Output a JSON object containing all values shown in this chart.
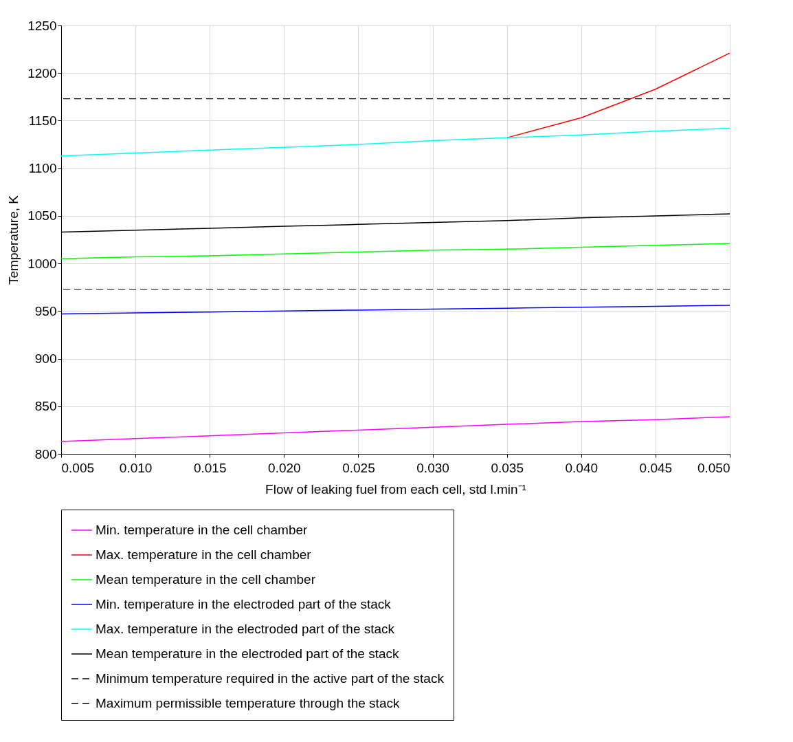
{
  "chart_data": {
    "type": "line",
    "xlabel": "Flow of leaking fuel from each cell, std l.min⁻¹",
    "ylabel": "Temperature, K",
    "x": [
      0.005,
      0.01,
      0.015,
      0.02,
      0.025,
      0.03,
      0.035,
      0.04,
      0.045,
      0.05
    ],
    "series": [
      {
        "name": "Min. temperature in the cell chamber",
        "color": "#ff00ff",
        "values": [
          813,
          816,
          819,
          822,
          825,
          828,
          831,
          834,
          836,
          839
        ]
      },
      {
        "name": "Max. temperature in the cell chamber",
        "color": "#ff0000",
        "values": [
          null,
          null,
          null,
          null,
          null,
          null,
          1132,
          1153,
          1183,
          1221
        ]
      },
      {
        "name": "Mean temperature in the cell chamber",
        "color": "#00ff00",
        "values": [
          1005,
          1007,
          1008,
          1010,
          1012,
          1014,
          1015,
          1017,
          1019,
          1021
        ]
      },
      {
        "name": "Min. temperature in the electroded part of the stack",
        "color": "#0000ff",
        "values": [
          947,
          948,
          949,
          950,
          951,
          952,
          953,
          954,
          955,
          956
        ]
      },
      {
        "name": "Max. temperature in the electroded part of the stack",
        "color": "#00ffff",
        "values": [
          1113,
          1116,
          1119,
          1122,
          1125,
          1129,
          1132,
          1135,
          1139,
          1142
        ]
      },
      {
        "name": "Mean temperature in the electroded part of the stack",
        "color": "#000000",
        "values": [
          1033,
          1035,
          1037,
          1039,
          1041,
          1043,
          1045,
          1048,
          1050,
          1052
        ]
      }
    ],
    "ref_lines": [
      {
        "axis": "y",
        "value": 973,
        "label": "Minimum temperature required in the active part of the stack",
        "color": "#000000",
        "line_style": "dashed"
      },
      {
        "axis": "y",
        "value": 1173,
        "label": "Maximum permissible temperature through the stack",
        "color": "#000000",
        "line_style": "dashed"
      }
    ],
    "xlim": [
      0.005,
      0.05
    ],
    "xticks": [
      0.005,
      {
        "value": 0.01,
        "label": "0.010"
      },
      0.015,
      {
        "value": 0.02,
        "label": "0.020"
      },
      0.025,
      {
        "value": 0.03,
        "label": "0.030"
      },
      0.035,
      {
        "value": 0.04,
        "label": "0.040"
      },
      0.045,
      {
        "value": 0.05,
        "label": "0.050"
      }
    ],
    "ylim": [
      800,
      1250
    ],
    "yticks": [
      800,
      850,
      900,
      950,
      1000,
      1050,
      1100,
      1150,
      1200,
      1250
    ],
    "grid": true,
    "legend": "bottom",
    "line_style": "solid"
  }
}
